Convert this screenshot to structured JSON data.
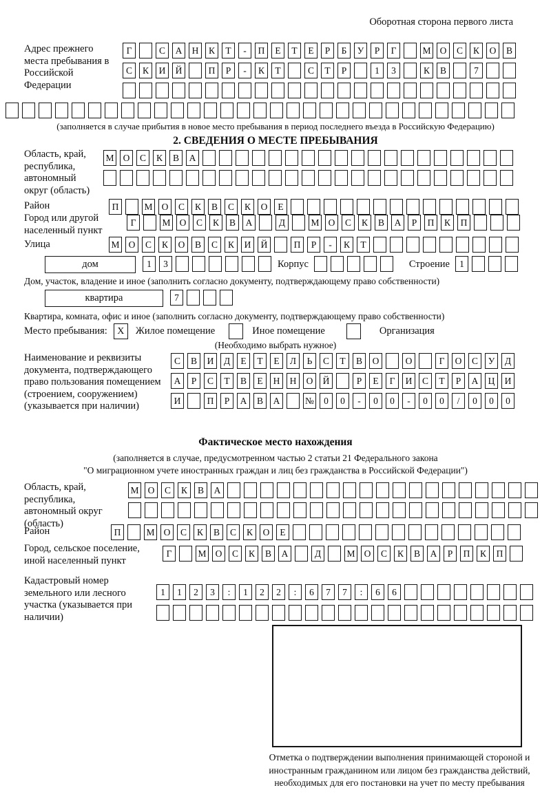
{
  "page": {
    "header_note": "Оборотная сторона первого листа"
  },
  "prev_address": {
    "label": "Адрес прежнего места пребывания в Российской Федерации",
    "row1": {
      "chars": "Г САНКТ-ПЕТЕРБУРГ МОСКОВ",
      "total": 24
    },
    "row2": {
      "chars": "СКИЙ ПР-КТ СТР 13 КВ 7",
      "total": 24
    },
    "row3": {
      "chars": "",
      "total": 24
    },
    "row4": {
      "chars": "",
      "total": 31
    },
    "caption": "(заполняется в случае прибытия в новое место пребывания в период последнего въезда в Российскую Федерацию)"
  },
  "section2": {
    "title": "2. СВЕДЕНИЯ О МЕСТЕ ПРЕБЫВАНИЯ",
    "oblast_label": "Область, край, республика, автономный округ (область)",
    "oblast_row1": {
      "chars": "МОСКВА",
      "total": 25
    },
    "oblast_row2": {
      "chars": "",
      "total": 25
    },
    "raion_label": "Район",
    "raion_row": {
      "chars": "П МОСКВСКОЕ",
      "total": 25
    },
    "gorod_label": "Город или другой населенный пункт",
    "gorod_row": {
      "chars": "Г МОСКВА Д МОСКВАРПКП",
      "total": 24
    },
    "ulitsa_label": "Улица",
    "ulitsa_row": {
      "chars": "МОСКОВСКИЙ ПР-КТ",
      "total": 25
    },
    "dom_box_label": "дом",
    "dom_row": {
      "chars": "13",
      "total": 8
    },
    "korpus_label": "Корпус",
    "korpus_row": {
      "chars": "",
      "total": 5
    },
    "stroenie_label": "Строение",
    "stroenie_row": {
      "chars": "1",
      "total": 4
    },
    "dom_caption": "Дом, участок, владение и иное (заполнить согласно документу, подтверждающему право собственности)",
    "kvartira_box_label": "квартира",
    "kvartira_row": {
      "chars": "7",
      "total": 4
    },
    "kvartira_caption": "Квартира, комната, офис и иное (заполнить согласно документу, подтверждающему право собственности)",
    "mesto_label": "Место пребывания:",
    "mesto_options": [
      {
        "mark": "X",
        "label": "Жилое помещение"
      },
      {
        "mark": "",
        "label": "Иное помещение"
      },
      {
        "mark": "",
        "label": "Организация"
      }
    ],
    "mesto_caption": "(Необходимо выбрать нужное)",
    "document_label": "Наименование и реквизиты документа, подтверждающего право пользования помещением (строением, сооружением) (указывается при наличии)",
    "document_row1": {
      "chars": "СВИДЕТЕЛЬСТВО О ГОСУД",
      "total": 21
    },
    "document_row2": {
      "chars": "АРСТВЕННОЙ РЕГИСТРАЦИ",
      "total": 21
    },
    "document_row3": {
      "chars": "И ПРАВА №00-00-00/000",
      "total": 21
    }
  },
  "actual_location": {
    "title": "Фактическое место нахождения",
    "caption_line1": "(заполняется в случае, предусмотренном частью 2 статьи 21 Федерального закона",
    "caption_line2": "\"О миграционном учете иностранных граждан и лиц без гражданства в Российской Федерации\")",
    "oblast_label": "Область, край, республика, автономный округ (область)",
    "oblast_row1": {
      "chars": "МОСКВА",
      "total": 25
    },
    "oblast_row2": {
      "chars": "",
      "total": 25
    },
    "raion_label": "Район",
    "raion_row": {
      "chars": "П МОСКВСКОЕ",
      "total": 25
    },
    "gorod_label": "Город, сельское поселение, иной населенный пункт",
    "gorod_row": {
      "chars": "Г МОСКВА Д МОСКВАРПКП",
      "total": 22
    },
    "kadastr_label": "Кадастровый номер земельного или лесного участка (указывается при наличии)",
    "kadastr_row1": {
      "chars": "1123:122:677:66",
      "total": 23
    },
    "kadastr_row2": {
      "chars": "",
      "total": 23
    },
    "stamp_caption": "Отметка о подтверждении выполнения принимающей стороной и иностранным гражданином или лицом без гражданства действий, необходимых для его постановки на учет по месту пребывания"
  }
}
